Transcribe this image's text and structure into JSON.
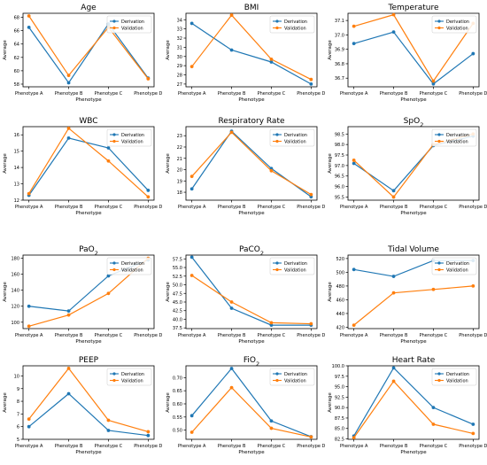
{
  "chart_data": [
    {
      "type": "line",
      "title": "Age",
      "title_sub": "",
      "xlabel": "Phenotype",
      "ylabel": "Average",
      "categories": [
        "Phenotype A",
        "Phenotype B",
        "Phenotype C",
        "Phenotype D"
      ],
      "ylim": [
        57.6,
        68.6
      ],
      "yticks": [
        58,
        60,
        62,
        64,
        66,
        68
      ],
      "legend": "top-right",
      "series": [
        {
          "name": "Derivation",
          "color": "#1f77b4",
          "values": [
            66.5,
            58.2,
            67.0,
            58.9
          ]
        },
        {
          "name": "Validation",
          "color": "#ff7f0e",
          "values": [
            68.2,
            59.3,
            66.5,
            58.8
          ]
        }
      ]
    },
    {
      "type": "line",
      "title": "BMI",
      "title_sub": "",
      "xlabel": "Phenotype",
      "ylabel": "Average",
      "categories": [
        "Phenotype A",
        "Phenotype B",
        "Phenotype C",
        "Phenotype D"
      ],
      "ylim": [
        26.7,
        34.7
      ],
      "yticks": [
        27,
        28,
        29,
        30,
        31,
        32,
        33,
        34
      ],
      "legend": "top-right",
      "series": [
        {
          "name": "Derivation",
          "color": "#1f77b4",
          "values": [
            33.6,
            30.7,
            29.4,
            27.0
          ]
        },
        {
          "name": "Validation",
          "color": "#ff7f0e",
          "values": [
            28.9,
            34.5,
            29.7,
            27.5
          ]
        }
      ]
    },
    {
      "type": "line",
      "title": "Temperature",
      "title_sub": "",
      "xlabel": "Phenotype",
      "ylabel": "Average",
      "categories": [
        "Phenotype A",
        "Phenotype B",
        "Phenotype C",
        "Phenotype D"
      ],
      "ylim": [
        36.64,
        37.15
      ],
      "yticks": [
        36.7,
        36.8,
        36.9,
        37.0,
        37.1
      ],
      "legend": "top-right",
      "series": [
        {
          "name": "Derivation",
          "color": "#1f77b4",
          "values": [
            36.94,
            37.02,
            36.66,
            36.87
          ]
        },
        {
          "name": "Validation",
          "color": "#ff7f0e",
          "values": [
            37.06,
            37.14,
            36.68,
            37.08
          ]
        }
      ]
    },
    {
      "type": "line",
      "title": "WBC",
      "title_sub": "",
      "xlabel": "Phenotype",
      "ylabel": "Average",
      "categories": [
        "Phenotype A",
        "Phenotype B",
        "Phenotype C",
        "Phenotype D"
      ],
      "ylim": [
        12.0,
        16.5
      ],
      "yticks": [
        12,
        13,
        14,
        15,
        16
      ],
      "legend": "top-right",
      "series": [
        {
          "name": "Derivation",
          "color": "#1f77b4",
          "values": [
            12.3,
            15.8,
            15.2,
            12.6
          ]
        },
        {
          "name": "Validation",
          "color": "#ff7f0e",
          "values": [
            12.4,
            16.4,
            14.4,
            12.2
          ]
        }
      ]
    },
    {
      "type": "line",
      "title": "Respiratory Rate",
      "title_sub": "",
      "xlabel": "Phenotype",
      "ylabel": "Average",
      "categories": [
        "Phenotype A",
        "Phenotype B",
        "Phenotype C",
        "Phenotype D"
      ],
      "ylim": [
        17.3,
        23.8
      ],
      "yticks": [
        18,
        19,
        20,
        21,
        22,
        23
      ],
      "legend": "top-right",
      "series": [
        {
          "name": "Derivation",
          "color": "#1f77b4",
          "values": [
            18.3,
            23.4,
            20.1,
            17.6
          ]
        },
        {
          "name": "Validation",
          "color": "#ff7f0e",
          "values": [
            19.4,
            23.3,
            19.9,
            17.8
          ]
        }
      ]
    },
    {
      "type": "line",
      "title": "SpO",
      "title_sub": "2",
      "xlabel": "Phenotype",
      "ylabel": "Average",
      "categories": [
        "Phenotype A",
        "Phenotype B",
        "Phenotype C",
        "Phenotype D"
      ],
      "ylim": [
        95.35,
        98.85
      ],
      "yticks": [
        95.5,
        96.0,
        96.5,
        97.0,
        97.5,
        98.0,
        98.5
      ],
      "legend": "top-right",
      "series": [
        {
          "name": "Derivation",
          "color": "#1f77b4",
          "values": [
            97.1,
            95.8,
            97.95,
            98.4
          ]
        },
        {
          "name": "Validation",
          "color": "#ff7f0e",
          "values": [
            97.25,
            95.5,
            98.0,
            98.5
          ]
        }
      ]
    },
    {
      "type": "line",
      "title": "PaO",
      "title_sub": "2",
      "xlabel": "Phenotype",
      "ylabel": "Average",
      "categories": [
        "Phenotype A",
        "Phenotype B",
        "Phenotype C",
        "Phenotype D"
      ],
      "ylim": [
        92,
        184
      ],
      "yticks": [
        100,
        120,
        140,
        160,
        180
      ],
      "legend": "top-right",
      "series": [
        {
          "name": "Derivation",
          "color": "#1f77b4",
          "values": [
            120,
            114,
            158,
            178
          ]
        },
        {
          "name": "Validation",
          "color": "#ff7f0e",
          "values": [
            95,
            109,
            136,
            180
          ]
        }
      ]
    },
    {
      "type": "line",
      "title": "PaCO",
      "title_sub": "2",
      "xlabel": "Phenotype",
      "ylabel": "Average",
      "categories": [
        "Phenotype A",
        "Phenotype B",
        "Phenotype C",
        "Phenotype D"
      ],
      "ylim": [
        37.3,
        58.6
      ],
      "yticks": [
        37.5,
        40.0,
        42.5,
        45.0,
        47.5,
        50.0,
        52.5,
        55.0,
        57.5
      ],
      "legend": "top-right",
      "series": [
        {
          "name": "Derivation",
          "color": "#1f77b4",
          "values": [
            58.0,
            43.2,
            38.3,
            38.3
          ]
        },
        {
          "name": "Validation",
          "color": "#ff7f0e",
          "values": [
            52.7,
            45.0,
            39.0,
            38.7
          ]
        }
      ]
    },
    {
      "type": "line",
      "title": "Tidal Volume",
      "title_sub": "",
      "xlabel": "Phenotype",
      "ylabel": "Average",
      "categories": [
        "Phenotype A",
        "Phenotype B",
        "Phenotype C",
        "Phenotype D"
      ],
      "ylim": [
        418,
        525
      ],
      "yticks": [
        420,
        440,
        460,
        480,
        500,
        520
      ],
      "legend": "top-right",
      "series": [
        {
          "name": "Derivation",
          "color": "#1f77b4",
          "values": [
            504,
            494,
            517,
            517
          ]
        },
        {
          "name": "Validation",
          "color": "#ff7f0e",
          "values": [
            423,
            470,
            475,
            480
          ]
        }
      ]
    },
    {
      "type": "line",
      "title": "PEEP",
      "title_sub": "",
      "xlabel": "Phenotype",
      "ylabel": "Average",
      "categories": [
        "Phenotype A",
        "Phenotype B",
        "Phenotype C",
        "Phenotype D"
      ],
      "ylim": [
        5.0,
        10.8
      ],
      "yticks": [
        5,
        6,
        7,
        8,
        9,
        10
      ],
      "legend": "top-right",
      "series": [
        {
          "name": "Derivation",
          "color": "#1f77b4",
          "values": [
            6.0,
            8.6,
            5.7,
            5.3
          ]
        },
        {
          "name": "Validation",
          "color": "#ff7f0e",
          "values": [
            6.6,
            10.6,
            6.5,
            5.6
          ]
        }
      ]
    },
    {
      "type": "line",
      "title": "FiO",
      "title_sub": "2",
      "xlabel": "Phenotype",
      "ylabel": "Average",
      "categories": [
        "Phenotype A",
        "Phenotype B",
        "Phenotype C",
        "Phenotype D"
      ],
      "ylim": [
        0.465,
        0.745
      ],
      "yticks": [
        0.5,
        0.55,
        0.6,
        0.65,
        0.7
      ],
      "legend": "top-right",
      "series": [
        {
          "name": "Derivation",
          "color": "#1f77b4",
          "values": [
            0.555,
            0.735,
            0.535,
            0.475
          ]
        },
        {
          "name": "Validation",
          "color": "#ff7f0e",
          "values": [
            0.492,
            0.662,
            0.507,
            0.474
          ]
        }
      ]
    },
    {
      "type": "line",
      "title": "Heart Rate",
      "title_sub": "",
      "xlabel": "Phenotype",
      "ylabel": "Average",
      "categories": [
        "Phenotype A",
        "Phenotype B",
        "Phenotype C",
        "Phenotype D"
      ],
      "ylim": [
        82.4,
        100.0
      ],
      "yticks": [
        82.5,
        85.0,
        87.5,
        90.0,
        92.5,
        95.0,
        97.5,
        100.0
      ],
      "legend": "top-right",
      "series": [
        {
          "name": "Derivation",
          "color": "#1f77b4",
          "values": [
            83.2,
            99.5,
            90.0,
            86.0
          ]
        },
        {
          "name": "Validation",
          "color": "#ff7f0e",
          "values": [
            82.8,
            96.3,
            86.0,
            83.8
          ]
        }
      ]
    }
  ]
}
